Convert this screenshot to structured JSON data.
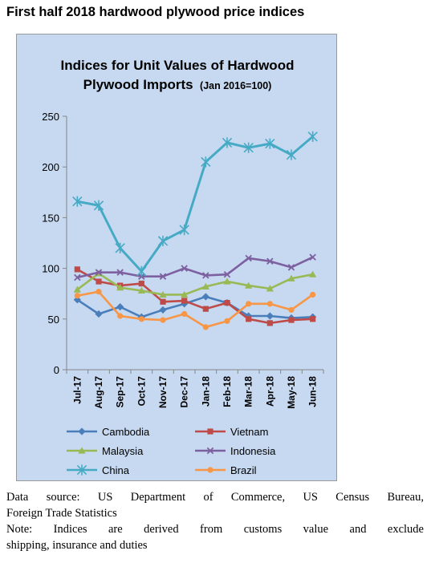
{
  "page_title": "First half 2018 hardwood plywood price indices",
  "chart_data": {
    "type": "line",
    "title_line1": "Indices for Unit Values of Hardwood",
    "title_line2": "Plywood Imports",
    "title_suffix": "(Jan 2016=100)",
    "xlabel": "",
    "ylabel": "",
    "ylim": [
      0,
      250
    ],
    "yticks": [
      0,
      50,
      100,
      150,
      200,
      250
    ],
    "grid": false,
    "legend_position": "bottom",
    "categories": [
      "Jul-17",
      "Aug-17",
      "Sep-17",
      "Oct-17",
      "Nov-17",
      "Dec-17",
      "Jan-18",
      "Feb-18",
      "Mar-18",
      "Apr-18",
      "May-18",
      "Jun-18"
    ],
    "series": [
      {
        "name": "Cambodia",
        "color": "#4a7ebb",
        "marker": "diamond",
        "values": [
          69,
          55,
          62,
          52,
          59,
          65,
          72,
          66,
          53,
          53,
          51,
          52
        ]
      },
      {
        "name": "Vietnam",
        "color": "#be4b48",
        "marker": "square",
        "values": [
          99,
          87,
          83,
          85,
          67,
          68,
          60,
          66,
          50,
          46,
          49,
          50
        ]
      },
      {
        "name": "Malaysia",
        "color": "#98b954",
        "marker": "triangle",
        "values": [
          79,
          95,
          81,
          78,
          74,
          74,
          82,
          87,
          83,
          80,
          90,
          94
        ]
      },
      {
        "name": "Indonesia",
        "color": "#7d60a0",
        "marker": "x",
        "values": [
          91,
          96,
          96,
          92,
          92,
          100,
          93,
          94,
          110,
          107,
          101,
          111
        ]
      },
      {
        "name": "China",
        "color": "#46aac5",
        "marker": "star",
        "values": [
          166,
          162,
          120,
          97,
          127,
          138,
          205,
          224,
          219,
          223,
          212,
          230
        ]
      },
      {
        "name": "Brazil",
        "color": "#f79646",
        "marker": "circle",
        "values": [
          73,
          77,
          53,
          50,
          49,
          55,
          42,
          48,
          65,
          65,
          59,
          74
        ]
      }
    ]
  },
  "footer": {
    "source_line1": "Data source: US Department of Commerce, US Census Bureau,",
    "source_line2": "Foreign Trade Statistics",
    "note_line1": "Note: Indices are derived from customs value and exclude",
    "note_line2": "shipping, insurance and duties"
  }
}
